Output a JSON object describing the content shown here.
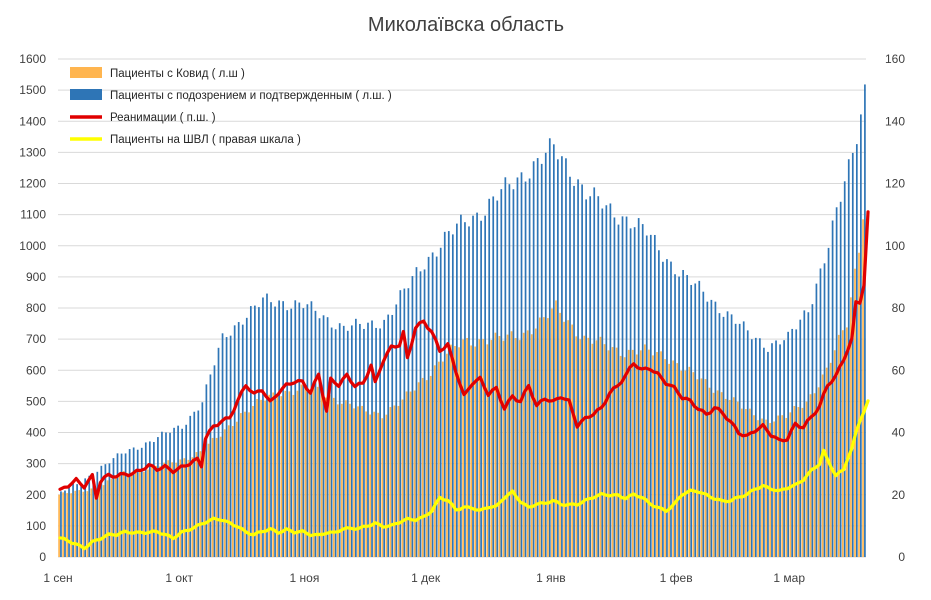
{
  "chart_data": {
    "type": "bar+line",
    "title": "Миколаївска область",
    "left_axis": {
      "min": 0,
      "max": 1600,
      "step": 100,
      "ticks": [
        "0",
        "100",
        "200",
        "300",
        "400",
        "500",
        "600",
        "700",
        "800",
        "900",
        "1000",
        "1100",
        "1200",
        "1300",
        "1400",
        "1500",
        "1600"
      ]
    },
    "right_axis": {
      "min": 0,
      "max": 160,
      "step": 20,
      "ticks": [
        "0",
        "20",
        "40",
        "60",
        "80",
        "100",
        "120",
        "140",
        "160"
      ]
    },
    "x_axis": {
      "start": "1 сен",
      "days": 200,
      "month_labels": [
        {
          "label": "1 сен",
          "day": 0
        },
        {
          "label": "1 окт",
          "day": 30
        },
        {
          "label": "1 ноя",
          "day": 61
        },
        {
          "label": "1 дек",
          "day": 91
        },
        {
          "label": "1 янв",
          "day": 122
        },
        {
          "label": "1 фев",
          "day": 153
        },
        {
          "label": "1 мар",
          "day": 181
        }
      ]
    },
    "grid": "horizontal",
    "legend_position": "top-left",
    "series": [
      {
        "name": "Пациенты с Ковид ( л.ш )",
        "kind": "bar",
        "axis": "left",
        "color": "#FFB54F",
        "anchors": [
          [
            0,
            200
          ],
          [
            5,
            210
          ],
          [
            10,
            225
          ],
          [
            15,
            265
          ],
          [
            20,
            280
          ],
          [
            25,
            295
          ],
          [
            30,
            310
          ],
          [
            35,
            340
          ],
          [
            40,
            390
          ],
          [
            45,
            460
          ],
          [
            50,
            500
          ],
          [
            55,
            530
          ],
          [
            60,
            540
          ],
          [
            65,
            530
          ],
          [
            70,
            500
          ],
          [
            75,
            470
          ],
          [
            80,
            460
          ],
          [
            85,
            500
          ],
          [
            90,
            570
          ],
          [
            95,
            640
          ],
          [
            100,
            690
          ],
          [
            105,
            700
          ],
          [
            110,
            700
          ],
          [
            115,
            720
          ],
          [
            120,
            760
          ],
          [
            123,
            800
          ],
          [
            126,
            760
          ],
          [
            130,
            700
          ],
          [
            135,
            680
          ],
          [
            140,
            660
          ],
          [
            145,
            660
          ],
          [
            150,
            650
          ],
          [
            155,
            600
          ],
          [
            160,
            560
          ],
          [
            165,
            520
          ],
          [
            170,
            470
          ],
          [
            175,
            440
          ],
          [
            180,
            450
          ],
          [
            185,
            500
          ],
          [
            190,
            600
          ],
          [
            195,
            750
          ],
          [
            198,
            1000
          ],
          [
            200,
            1240
          ]
        ]
      },
      {
        "name": "Пациенты с подозрением и подтвержденным ( л.ш. )",
        "kind": "bar",
        "axis": "left",
        "color": "#2E75B6",
        "anchors": [
          [
            0,
            210
          ],
          [
            5,
            240
          ],
          [
            10,
            290
          ],
          [
            15,
            330
          ],
          [
            20,
            360
          ],
          [
            25,
            390
          ],
          [
            30,
            420
          ],
          [
            35,
            500
          ],
          [
            40,
            700
          ],
          [
            45,
            770
          ],
          [
            50,
            820
          ],
          [
            55,
            820
          ],
          [
            60,
            810
          ],
          [
            65,
            770
          ],
          [
            70,
            740
          ],
          [
            75,
            740
          ],
          [
            80,
            760
          ],
          [
            85,
            850
          ],
          [
            90,
            950
          ],
          [
            95,
            1020
          ],
          [
            100,
            1080
          ],
          [
            105,
            1120
          ],
          [
            110,
            1180
          ],
          [
            115,
            1240
          ],
          [
            120,
            1290
          ],
          [
            122,
            1310
          ],
          [
            126,
            1250
          ],
          [
            130,
            1170
          ],
          [
            135,
            1120
          ],
          [
            140,
            1090
          ],
          [
            145,
            1040
          ],
          [
            150,
            960
          ],
          [
            155,
            890
          ],
          [
            160,
            840
          ],
          [
            165,
            780
          ],
          [
            170,
            720
          ],
          [
            175,
            680
          ],
          [
            180,
            700
          ],
          [
            185,
            800
          ],
          [
            190,
            1000
          ],
          [
            195,
            1250
          ],
          [
            198,
            1430
          ],
          [
            200,
            1590
          ]
        ]
      },
      {
        "name": "Реанимации ( п.ш. )",
        "kind": "line",
        "axis": "right",
        "color": "#E00000",
        "anchors": [
          [
            0,
            21
          ],
          [
            2,
            23
          ],
          [
            4,
            25
          ],
          [
            6,
            23
          ],
          [
            8,
            26
          ],
          [
            9,
            19
          ],
          [
            10,
            24
          ],
          [
            12,
            26
          ],
          [
            14,
            26
          ],
          [
            16,
            27
          ],
          [
            18,
            27
          ],
          [
            20,
            28
          ],
          [
            22,
            29
          ],
          [
            24,
            28
          ],
          [
            26,
            29
          ],
          [
            28,
            28
          ],
          [
            30,
            29
          ],
          [
            32,
            30
          ],
          [
            34,
            31
          ],
          [
            35,
            29
          ],
          [
            36,
            38
          ],
          [
            38,
            42
          ],
          [
            40,
            44
          ],
          [
            42,
            45
          ],
          [
            44,
            50
          ],
          [
            46,
            55
          ],
          [
            48,
            52
          ],
          [
            50,
            54
          ],
          [
            52,
            50
          ],
          [
            54,
            53
          ],
          [
            56,
            55
          ],
          [
            58,
            56
          ],
          [
            60,
            56
          ],
          [
            62,
            53
          ],
          [
            64,
            59
          ],
          [
            66,
            47
          ],
          [
            67,
            57
          ],
          [
            69,
            55
          ],
          [
            71,
            58
          ],
          [
            73,
            55
          ],
          [
            75,
            56
          ],
          [
            77,
            62
          ],
          [
            78,
            56
          ],
          [
            80,
            63
          ],
          [
            82,
            67
          ],
          [
            84,
            68
          ],
          [
            85,
            72
          ],
          [
            86,
            64
          ],
          [
            88,
            74
          ],
          [
            90,
            76
          ],
          [
            92,
            72
          ],
          [
            94,
            66
          ],
          [
            96,
            68
          ],
          [
            98,
            60
          ],
          [
            100,
            52
          ],
          [
            102,
            56
          ],
          [
            104,
            57
          ],
          [
            106,
            52
          ],
          [
            108,
            54
          ],
          [
            110,
            48
          ],
          [
            112,
            52
          ],
          [
            114,
            50
          ],
          [
            116,
            55
          ],
          [
            118,
            48
          ],
          [
            120,
            51
          ],
          [
            122,
            50
          ],
          [
            124,
            52
          ],
          [
            126,
            50
          ],
          [
            128,
            42
          ],
          [
            130,
            44
          ],
          [
            132,
            46
          ],
          [
            134,
            48
          ],
          [
            136,
            53
          ],
          [
            138,
            55
          ],
          [
            140,
            58
          ],
          [
            142,
            62
          ],
          [
            144,
            60
          ],
          [
            146,
            61
          ],
          [
            148,
            59
          ],
          [
            150,
            56
          ],
          [
            152,
            54
          ],
          [
            154,
            51
          ],
          [
            156,
            50
          ],
          [
            158,
            48
          ],
          [
            160,
            46
          ],
          [
            162,
            48
          ],
          [
            164,
            46
          ],
          [
            166,
            43
          ],
          [
            168,
            40
          ],
          [
            170,
            39
          ],
          [
            172,
            41
          ],
          [
            174,
            42
          ],
          [
            176,
            39
          ],
          [
            178,
            37
          ],
          [
            180,
            38
          ],
          [
            182,
            43
          ],
          [
            184,
            42
          ],
          [
            186,
            45
          ],
          [
            188,
            48
          ],
          [
            190,
            55
          ],
          [
            192,
            58
          ],
          [
            194,
            64
          ],
          [
            196,
            70
          ],
          [
            197,
            82
          ],
          [
            198,
            82
          ],
          [
            199,
            87
          ],
          [
            200,
            110
          ]
        ]
      },
      {
        "name": "Пациенты на ШВЛ ( правая шкала )",
        "kind": "line",
        "axis": "right",
        "color": "#FFFF00",
        "anchors": [
          [
            0,
            6
          ],
          [
            2,
            5
          ],
          [
            4,
            4
          ],
          [
            6,
            3
          ],
          [
            8,
            5
          ],
          [
            10,
            6
          ],
          [
            12,
            7
          ],
          [
            14,
            7
          ],
          [
            16,
            8
          ],
          [
            18,
            8
          ],
          [
            20,
            8
          ],
          [
            22,
            8
          ],
          [
            24,
            8
          ],
          [
            26,
            7
          ],
          [
            28,
            6
          ],
          [
            30,
            8
          ],
          [
            32,
            9
          ],
          [
            34,
            10
          ],
          [
            36,
            11
          ],
          [
            38,
            12
          ],
          [
            40,
            12
          ],
          [
            42,
            11
          ],
          [
            44,
            10
          ],
          [
            46,
            8
          ],
          [
            48,
            7
          ],
          [
            50,
            8
          ],
          [
            52,
            9
          ],
          [
            54,
            8
          ],
          [
            56,
            9
          ],
          [
            58,
            8
          ],
          [
            60,
            8
          ],
          [
            62,
            7
          ],
          [
            64,
            7
          ],
          [
            66,
            8
          ],
          [
            68,
            8
          ],
          [
            70,
            9
          ],
          [
            72,
            9
          ],
          [
            74,
            9
          ],
          [
            76,
            10
          ],
          [
            78,
            11
          ],
          [
            80,
            10
          ],
          [
            82,
            10
          ],
          [
            84,
            11
          ],
          [
            86,
            12
          ],
          [
            88,
            12
          ],
          [
            90,
            13
          ],
          [
            92,
            15
          ],
          [
            94,
            19
          ],
          [
            96,
            18
          ],
          [
            98,
            15
          ],
          [
            100,
            16
          ],
          [
            102,
            16
          ],
          [
            104,
            15
          ],
          [
            106,
            16
          ],
          [
            108,
            16
          ],
          [
            110,
            19
          ],
          [
            112,
            21
          ],
          [
            114,
            18
          ],
          [
            116,
            16
          ],
          [
            118,
            17
          ],
          [
            120,
            17
          ],
          [
            122,
            18
          ],
          [
            124,
            17
          ],
          [
            126,
            17
          ],
          [
            128,
            17
          ],
          [
            130,
            18
          ],
          [
            132,
            19
          ],
          [
            134,
            20
          ],
          [
            136,
            20
          ],
          [
            138,
            20
          ],
          [
            140,
            19
          ],
          [
            142,
            20
          ],
          [
            144,
            19
          ],
          [
            146,
            17
          ],
          [
            148,
            16
          ],
          [
            150,
            15
          ],
          [
            152,
            17
          ],
          [
            154,
            20
          ],
          [
            156,
            21
          ],
          [
            158,
            21
          ],
          [
            160,
            20
          ],
          [
            162,
            19
          ],
          [
            164,
            18
          ],
          [
            166,
            18
          ],
          [
            168,
            19
          ],
          [
            170,
            20
          ],
          [
            172,
            22
          ],
          [
            174,
            23
          ],
          [
            176,
            22
          ],
          [
            178,
            21
          ],
          [
            180,
            22
          ],
          [
            182,
            23
          ],
          [
            184,
            25
          ],
          [
            186,
            28
          ],
          [
            188,
            30
          ],
          [
            189,
            34
          ],
          [
            190,
            31
          ],
          [
            192,
            26
          ],
          [
            194,
            28
          ],
          [
            195,
            32
          ],
          [
            196,
            35
          ],
          [
            197,
            40
          ],
          [
            198,
            44
          ],
          [
            200,
            50
          ]
        ]
      }
    ]
  }
}
